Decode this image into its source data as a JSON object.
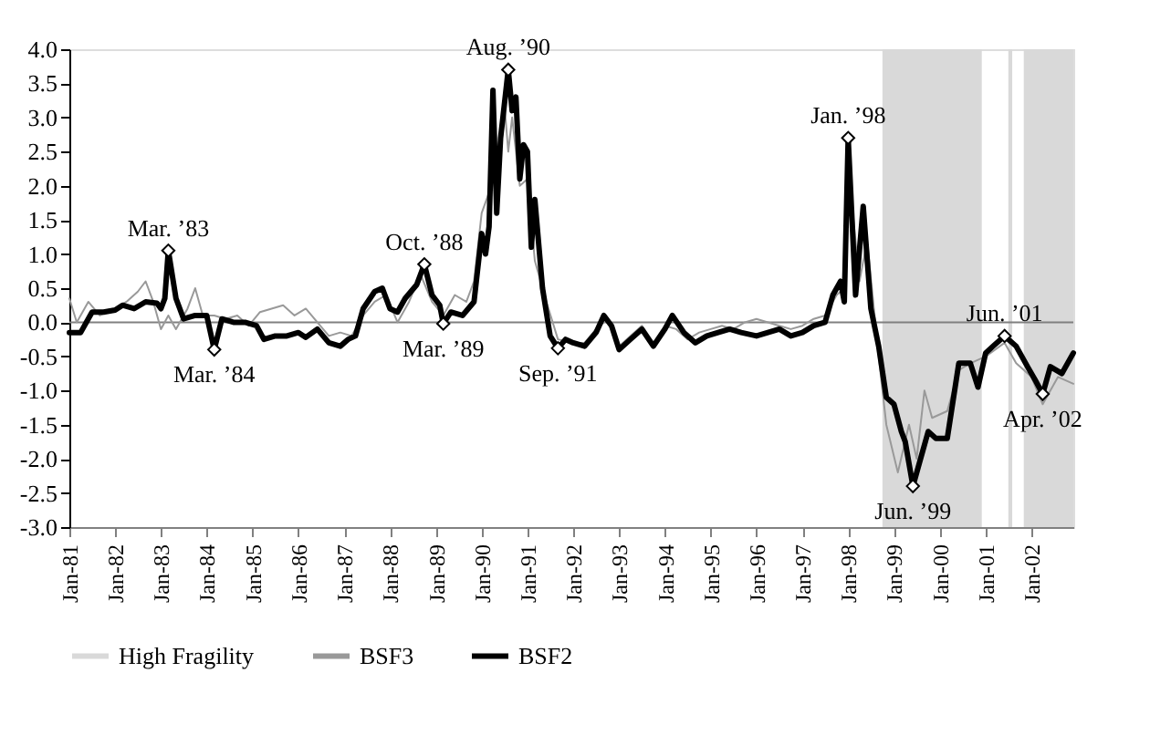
{
  "chart_data": {
    "type": "line",
    "xlim": [
      "1981-01",
      "2002-12"
    ],
    "xticks": [
      {
        "value": "1981-01",
        "label": "Jan-81"
      },
      {
        "value": "1982-01",
        "label": "Jan-82"
      },
      {
        "value": "1983-01",
        "label": "Jan-83"
      },
      {
        "value": "1984-01",
        "label": "Jan-84"
      },
      {
        "value": "1985-01",
        "label": "Jan-85"
      },
      {
        "value": "1986-01",
        "label": "Jan-86"
      },
      {
        "value": "1987-01",
        "label": "Jan-87"
      },
      {
        "value": "1988-01",
        "label": "Jan-88"
      },
      {
        "value": "1989-01",
        "label": "Jan-89"
      },
      {
        "value": "1990-01",
        "label": "Jan-90"
      },
      {
        "value": "1991-01",
        "label": "Jan-91"
      },
      {
        "value": "1992-01",
        "label": "Jan-92"
      },
      {
        "value": "1993-01",
        "label": "Jan-93"
      },
      {
        "value": "1994-01",
        "label": "Jan-94"
      },
      {
        "value": "1995-01",
        "label": "Jan-95"
      },
      {
        "value": "1996-01",
        "label": "Jan-96"
      },
      {
        "value": "1997-01",
        "label": "Jan-97"
      },
      {
        "value": "1998-01",
        "label": "Jan-98"
      },
      {
        "value": "1999-01",
        "label": "Jan-99"
      },
      {
        "value": "2000-01",
        "label": "Jan-00"
      },
      {
        "value": "2001-01",
        "label": "Jan-01"
      },
      {
        "value": "2002-01",
        "label": "Jan-02"
      }
    ],
    "ylim": [
      -3.0,
      4.0
    ],
    "yticks": [
      {
        "value": -3,
        "label": "-3.0"
      },
      {
        "value": -2.5,
        "label": "-2.5"
      },
      {
        "value": -2,
        "label": "-2.0"
      },
      {
        "value": -1.5,
        "label": "-1.5"
      },
      {
        "value": -1,
        "label": "-1.0"
      },
      {
        "value": -0.5,
        "label": "-0.5"
      },
      {
        "value": 0,
        "label": "0.0"
      },
      {
        "value": 0.5,
        "label": "0.5"
      },
      {
        "value": 1,
        "label": "1.0"
      },
      {
        "value": 1.5,
        "label": "1.5"
      },
      {
        "value": 2,
        "label": "2.0"
      },
      {
        "value": 2.5,
        "label": "2.5"
      },
      {
        "value": 3,
        "label": "3.0"
      },
      {
        "value": 3.5,
        "label": "3.5"
      },
      {
        "value": 4,
        "label": "4.0"
      }
    ],
    "grid": false,
    "legend": "bottom",
    "marker": "none",
    "line_style": "solid",
    "bands": [
      {
        "axis": "x",
        "from": "1998-10",
        "to": "2000-12",
        "label": "High Fragility",
        "color": "#d9d9d9"
      },
      {
        "axis": "x",
        "from": "2001-07",
        "to": "2001-08",
        "color": "#d9d9d9"
      },
      {
        "axis": "x",
        "from": "2001-11",
        "to": "2002-12",
        "color": "#d9d9d9"
      }
    ],
    "ref_lines": [
      {
        "axis": "y",
        "value": 0,
        "color": "#808080"
      }
    ],
    "series": [
      {
        "name": "BSF3",
        "color": "#999999",
        "x": [
          "1981-01",
          "1981-03",
          "1981-06",
          "1981-09",
          "1982-01",
          "1982-04",
          "1982-07",
          "1982-09",
          "1982-11",
          "1983-01",
          "1983-03",
          "1983-05",
          "1983-08",
          "1983-10",
          "1983-12",
          "1984-03",
          "1984-06",
          "1984-09",
          "1984-12",
          "1985-03",
          "1985-06",
          "1985-09",
          "1985-12",
          "1986-03",
          "1986-06",
          "1986-09",
          "1986-12",
          "1987-03",
          "1987-06",
          "1987-09",
          "1987-12",
          "1988-03",
          "1988-06",
          "1988-09",
          "1988-12",
          "1989-03",
          "1989-06",
          "1989-09",
          "1989-11",
          "1990-01",
          "1990-03",
          "1990-05",
          "1990-07",
          "1990-08",
          "1990-09",
          "1990-11",
          "1991-01",
          "1991-03",
          "1991-06",
          "1991-09",
          "1992-01",
          "1992-04",
          "1992-07",
          "1992-10",
          "1993-01",
          "1993-04",
          "1993-07",
          "1993-10",
          "1994-01",
          "1994-04",
          "1994-07",
          "1994-10",
          "1995-01",
          "1995-04",
          "1995-07",
          "1995-10",
          "1996-01",
          "1996-04",
          "1996-07",
          "1996-10",
          "1997-01",
          "1997-04",
          "1997-07",
          "1997-10",
          "1997-12",
          "1998-01",
          "1998-04",
          "1998-06",
          "1998-09",
          "1998-11",
          "1999-02",
          "1999-05",
          "1999-07",
          "1999-09",
          "1999-11",
          "2000-03",
          "2000-06",
          "2000-09",
          "2001-01",
          "2001-06",
          "2001-09",
          "2002-01",
          "2002-04",
          "2002-08",
          "2002-12"
        ],
        "values": [
          0.35,
          0.0,
          0.3,
          0.1,
          0.2,
          0.3,
          0.45,
          0.6,
          0.3,
          -0.1,
          0.1,
          -0.1,
          0.2,
          0.5,
          0.1,
          0.1,
          0.05,
          0.1,
          -0.05,
          0.15,
          0.2,
          0.25,
          0.1,
          0.2,
          0.0,
          -0.2,
          -0.15,
          -0.2,
          0.1,
          0.3,
          0.4,
          0.0,
          0.3,
          0.7,
          0.3,
          0.1,
          0.4,
          0.3,
          0.6,
          1.6,
          1.9,
          2.4,
          3.2,
          2.5,
          3.0,
          2.0,
          2.1,
          0.9,
          0.3,
          -0.25,
          -0.3,
          -0.3,
          -0.1,
          0.05,
          -0.35,
          -0.2,
          -0.05,
          -0.3,
          -0.05,
          -0.1,
          -0.25,
          -0.15,
          -0.1,
          -0.05,
          -0.1,
          0.0,
          0.05,
          0.0,
          -0.05,
          -0.1,
          -0.05,
          0.05,
          0.1,
          0.4,
          0.5,
          2.3,
          0.6,
          1.2,
          -0.5,
          -1.5,
          -2.2,
          -1.5,
          -2.0,
          -1.0,
          -1.4,
          -1.3,
          -0.7,
          -0.6,
          -0.5,
          -0.3,
          -0.6,
          -0.8,
          -1.2,
          -0.8,
          -0.9
        ]
      },
      {
        "name": "BSF2",
        "color": "#000000",
        "x": [
          "1981-01",
          "1981-04",
          "1981-07",
          "1981-10",
          "1982-01",
          "1982-03",
          "1982-06",
          "1982-09",
          "1982-12",
          "1983-01",
          "1983-02",
          "1983-03",
          "1983-05",
          "1983-07",
          "1983-10",
          "1984-01",
          "1984-03",
          "1984-05",
          "1984-08",
          "1984-11",
          "1985-02",
          "1985-04",
          "1985-07",
          "1985-10",
          "1986-01",
          "1986-03",
          "1986-06",
          "1986-09",
          "1986-12",
          "1987-02",
          "1987-04",
          "1987-06",
          "1987-09",
          "1987-11",
          "1988-01",
          "1988-03",
          "1988-05",
          "1988-08",
          "1988-10",
          "1988-12",
          "1989-02",
          "1989-03",
          "1989-05",
          "1989-08",
          "1989-11",
          "1990-01",
          "1990-02",
          "1990-03",
          "1990-04",
          "1990-05",
          "1990-06",
          "1990-08",
          "1990-09",
          "1990-10",
          "1990-11",
          "1990-12",
          "1991-01",
          "1991-02",
          "1991-03",
          "1991-05",
          "1991-07",
          "1991-09",
          "1991-11",
          "1992-01",
          "1992-04",
          "1992-07",
          "1992-09",
          "1992-11",
          "1993-01",
          "1993-04",
          "1993-07",
          "1993-10",
          "1994-01",
          "1994-03",
          "1994-06",
          "1994-09",
          "1994-12",
          "1995-03",
          "1995-06",
          "1995-09",
          "1996-01",
          "1996-04",
          "1996-07",
          "1996-10",
          "1997-01",
          "1997-04",
          "1997-07",
          "1997-09",
          "1997-11",
          "1997-12",
          "1998-01",
          "1998-03",
          "1998-05",
          "1998-07",
          "1998-09",
          "1998-11",
          "1999-01",
          "1999-03",
          "1999-04",
          "1999-06",
          "1999-08",
          "1999-10",
          "1999-12",
          "2000-03",
          "2000-06",
          "2000-09",
          "2000-11",
          "2001-01",
          "2001-03",
          "2001-06",
          "2001-09",
          "2001-12",
          "2002-02",
          "2002-04",
          "2002-06",
          "2002-09",
          "2002-12"
        ],
        "values": [
          -0.15,
          -0.15,
          0.15,
          0.15,
          0.18,
          0.25,
          0.2,
          0.3,
          0.28,
          0.2,
          0.35,
          1.05,
          0.35,
          0.05,
          0.1,
          0.1,
          -0.4,
          0.05,
          0.0,
          0.0,
          -0.05,
          -0.25,
          -0.2,
          -0.2,
          -0.15,
          -0.22,
          -0.1,
          -0.3,
          -0.35,
          -0.25,
          -0.2,
          0.2,
          0.45,
          0.5,
          0.2,
          0.15,
          0.35,
          0.55,
          0.85,
          0.4,
          0.25,
          -0.02,
          0.15,
          0.1,
          0.3,
          1.3,
          1.0,
          1.4,
          3.4,
          1.6,
          2.7,
          3.7,
          3.1,
          3.3,
          2.1,
          2.6,
          2.5,
          1.1,
          1.8,
          0.5,
          -0.2,
          -0.38,
          -0.25,
          -0.3,
          -0.35,
          -0.15,
          0.1,
          -0.05,
          -0.4,
          -0.25,
          -0.1,
          -0.35,
          -0.1,
          0.1,
          -0.15,
          -0.3,
          -0.2,
          -0.15,
          -0.1,
          -0.15,
          -0.2,
          -0.15,
          -0.1,
          -0.2,
          -0.15,
          -0.05,
          0.0,
          0.4,
          0.6,
          0.3,
          2.7,
          0.4,
          1.7,
          0.2,
          -0.35,
          -1.1,
          -1.2,
          -1.6,
          -1.75,
          -2.4,
          -2.0,
          -1.6,
          -1.7,
          -1.7,
          -0.6,
          -0.6,
          -0.95,
          -0.45,
          -0.35,
          -0.2,
          -0.35,
          -0.65,
          -0.85,
          -1.05,
          -0.65,
          -0.75,
          -0.45
        ]
      }
    ],
    "annotations": [
      {
        "text": "Mar. ’83",
        "x": "1983-03",
        "y": 1.05
      },
      {
        "text": "Mar. ’84",
        "x": "1984-03",
        "y": -0.4
      },
      {
        "text": "Oct. ’88",
        "x": "1988-10",
        "y": 0.85
      },
      {
        "text": "Mar. ’89",
        "x": "1989-03",
        "y": -0.02
      },
      {
        "text": "Aug. ’90",
        "x": "1990-08",
        "y": 3.7
      },
      {
        "text": "Sep. ’91",
        "x": "1991-09",
        "y": -0.38
      },
      {
        "text": "Jan. ’98",
        "x": "1998-01",
        "y": 2.7
      },
      {
        "text": "Jun. ’99",
        "x": "1999-06",
        "y": -2.4
      },
      {
        "text": "Jun. ’01",
        "x": "2001-06",
        "y": -0.2
      },
      {
        "text": "Apr. ’02",
        "x": "2002-04",
        "y": -1.05
      }
    ]
  }
}
